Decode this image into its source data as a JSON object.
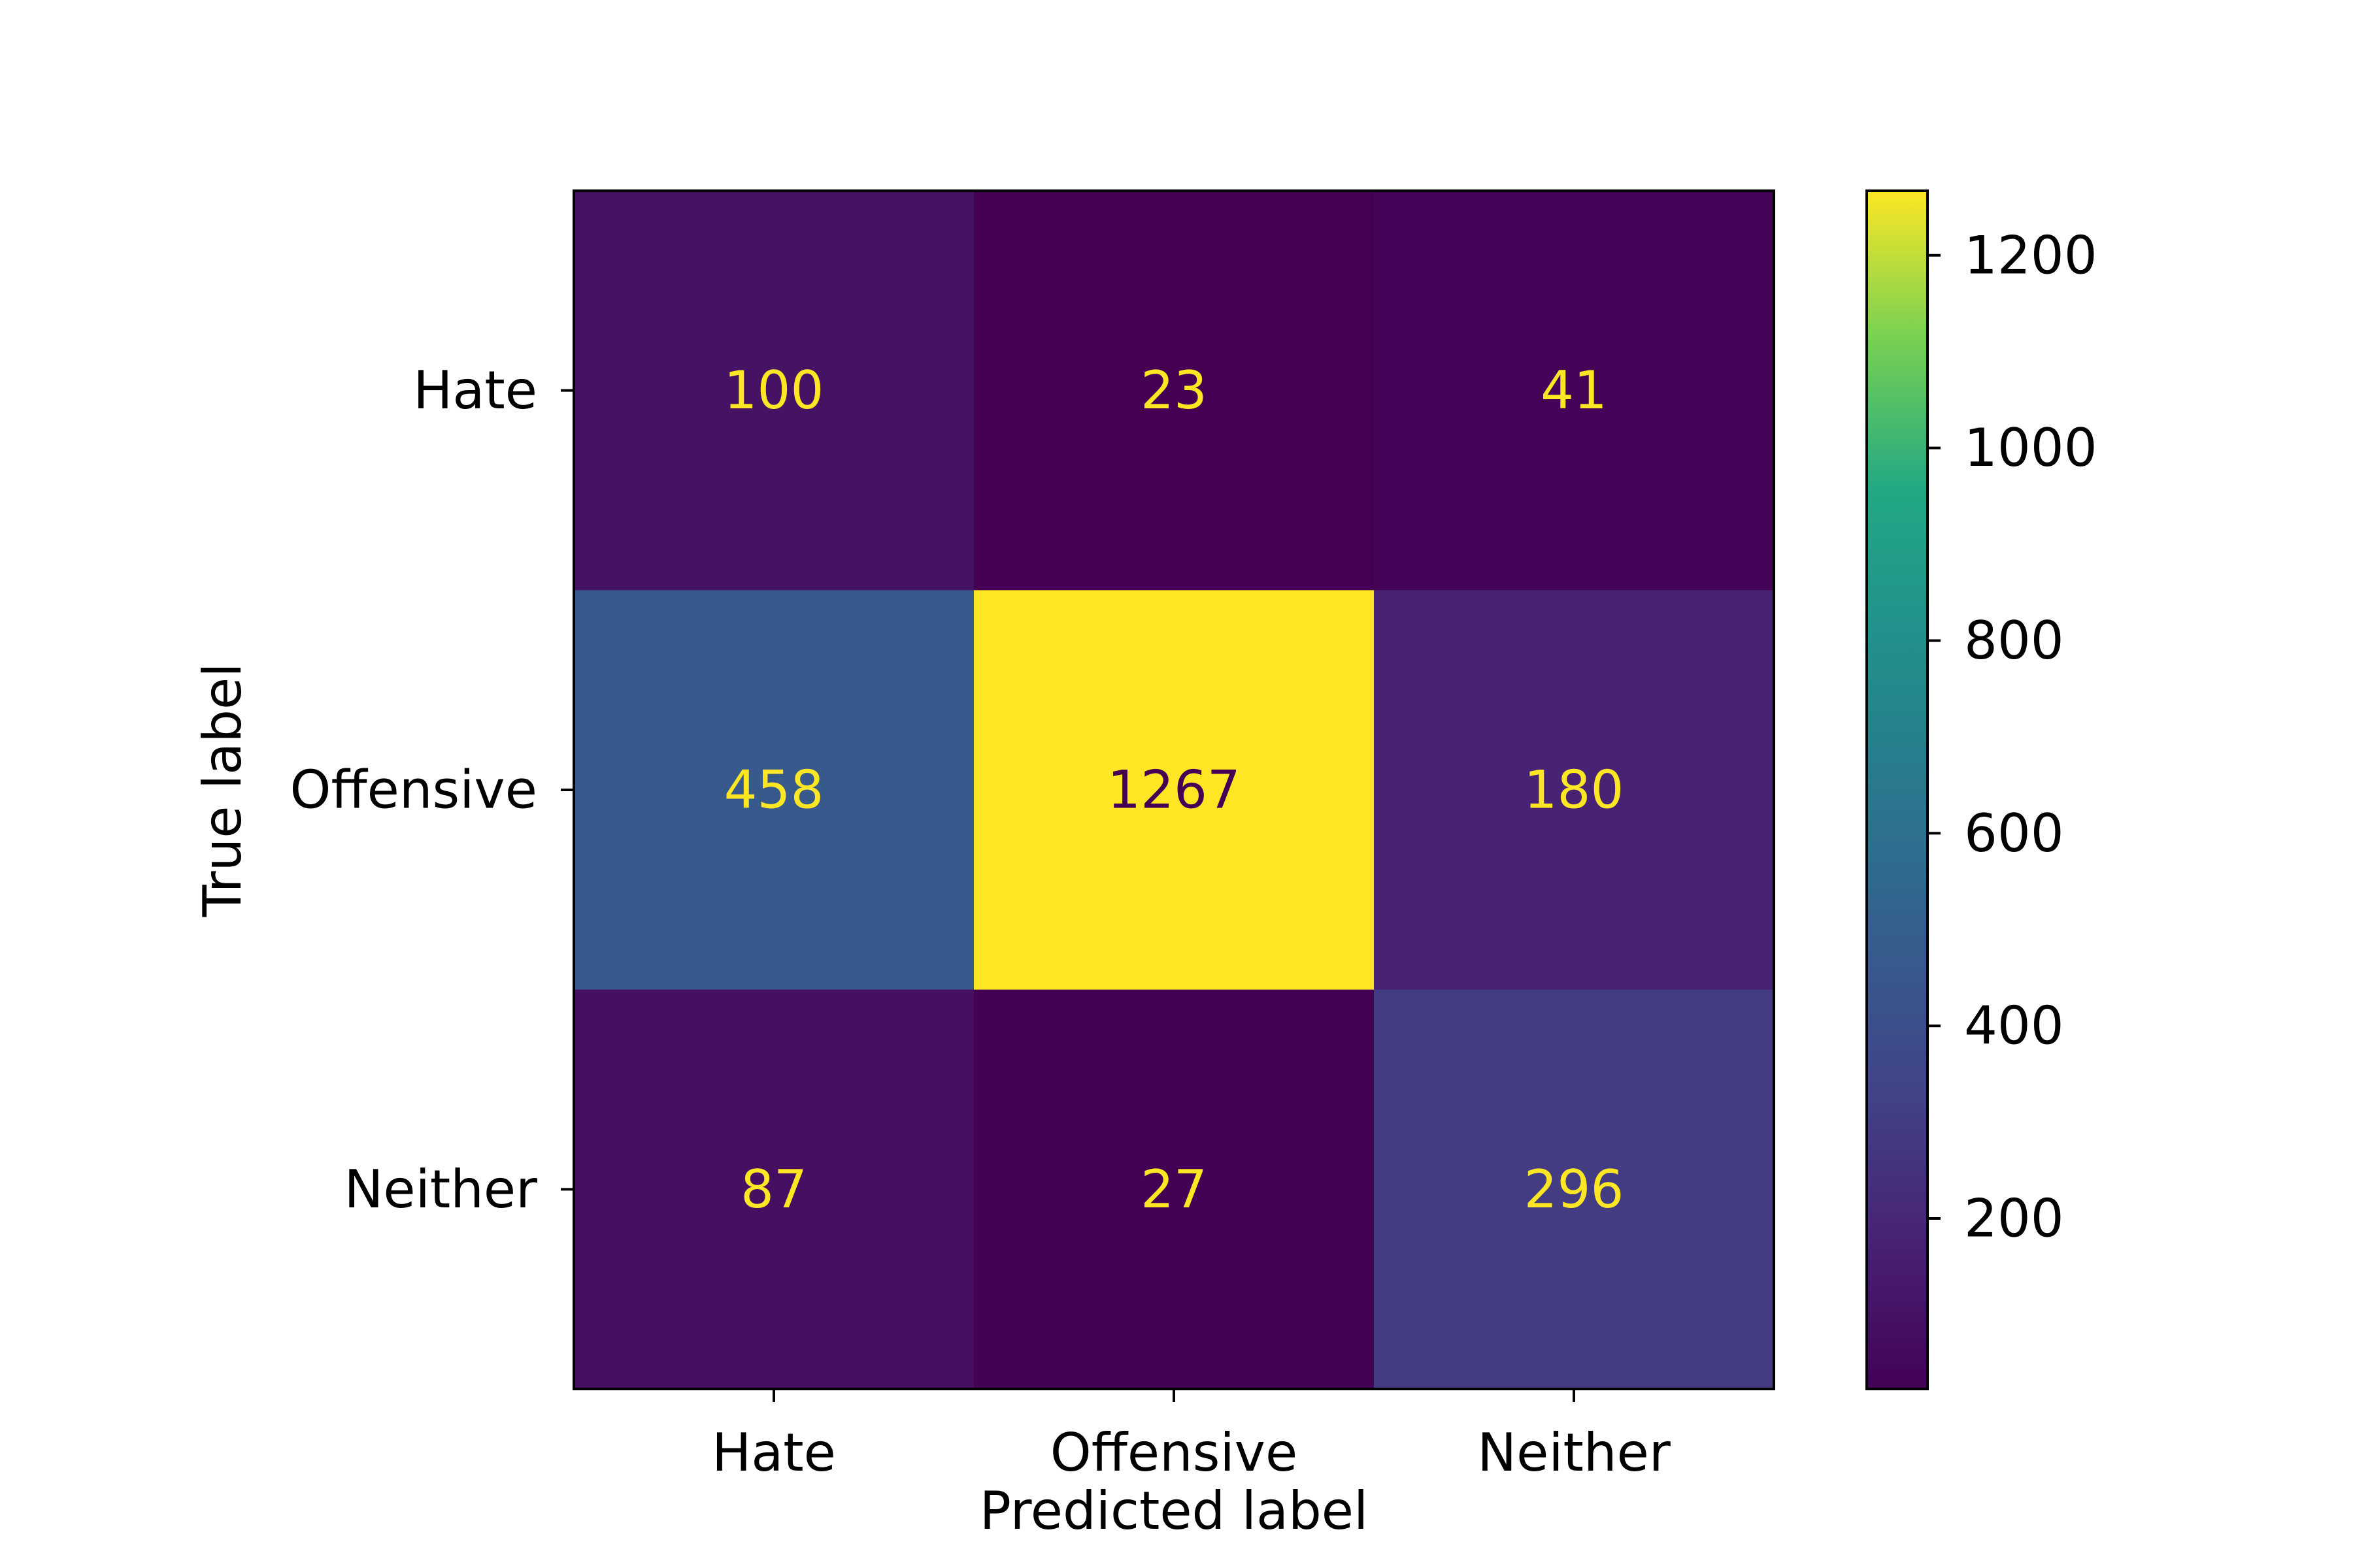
{
  "chart_data": {
    "type": "heatmap",
    "title": "",
    "xlabel": "Predicted label",
    "ylabel": "True label",
    "x_categories": [
      "Hate",
      "Offensive",
      "Neither"
    ],
    "y_categories": [
      "Hate",
      "Offensive",
      "Neither"
    ],
    "values": [
      [
        100,
        23,
        41
      ],
      [
        458,
        1267,
        180
      ],
      [
        87,
        27,
        296
      ]
    ],
    "colormap": "viridis",
    "colorbar": {
      "range": [
        23,
        1267
      ],
      "ticks": [
        200,
        400,
        600,
        800,
        1000,
        1200
      ],
      "tick_labels": [
        "200",
        "400",
        "600",
        "800",
        "1000",
        "1200"
      ]
    },
    "text_color_light": "#fde725",
    "text_color_dark": "#440154",
    "grid": false
  }
}
